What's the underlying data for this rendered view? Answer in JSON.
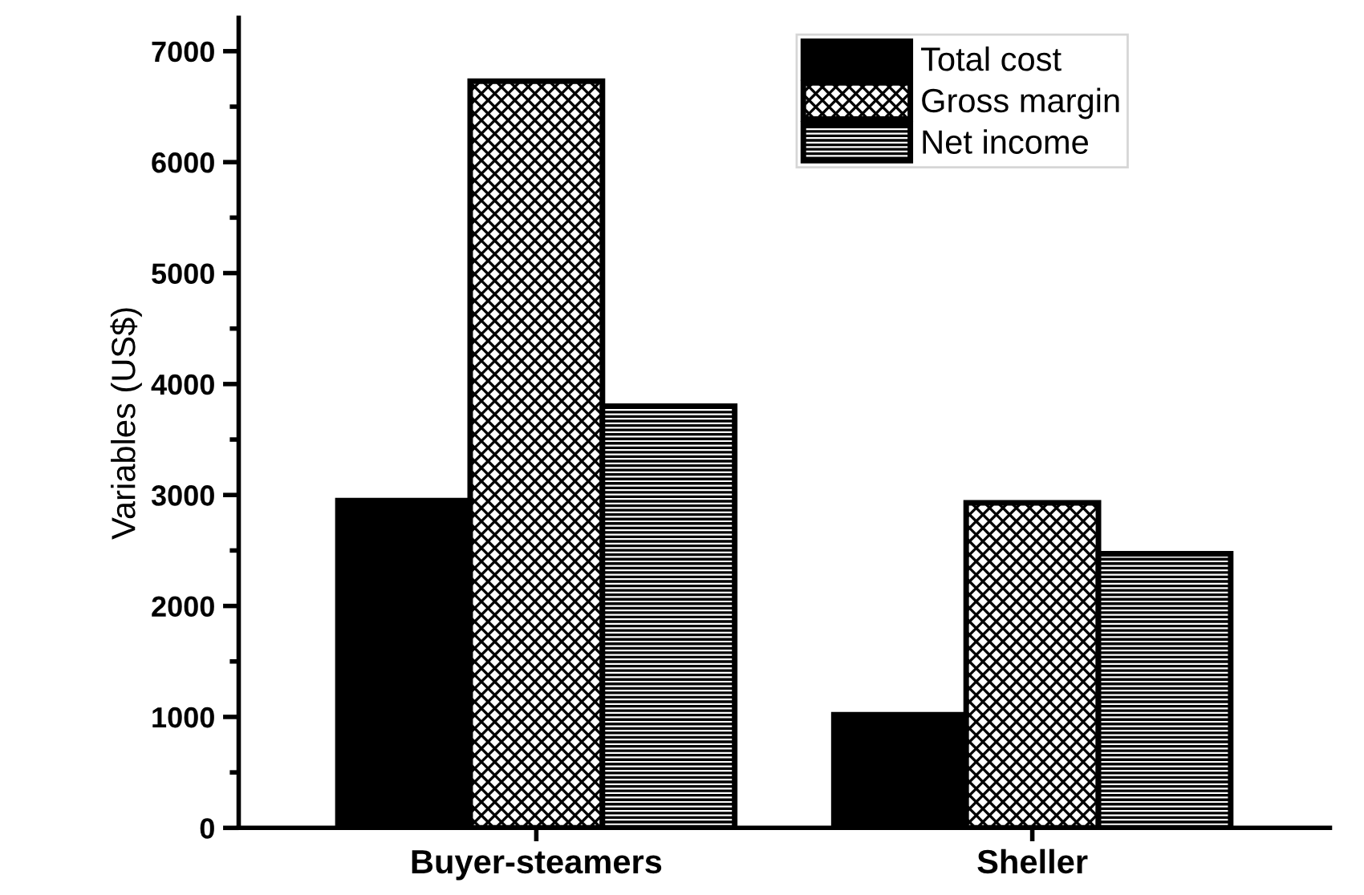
{
  "chart_data": {
    "type": "bar",
    "ylabel": "Variables (US$)",
    "categories": [
      "Buyer-steamers",
      "Sheller"
    ],
    "series": [
      {
        "name": "Total cost",
        "color": "#000000",
        "values": [
          2950,
          1020
        ]
      },
      {
        "name": "Gross margin",
        "color": "#000000",
        "values": [
          6730,
          2930
        ]
      },
      {
        "name": "Net income",
        "color": "#000000",
        "values": [
          3800,
          2470
        ]
      }
    ],
    "ylim": [
      0,
      7300
    ],
    "yticks": [
      0,
      {
        "value": 500,
        "label": null
      },
      1000,
      {
        "value": 1500,
        "label": null
      },
      2000,
      {
        "value": 2500,
        "label": null
      },
      3000,
      {
        "value": 3500,
        "label": null
      },
      4000,
      {
        "value": 4500,
        "label": null
      },
      5000,
      {
        "value": 5500,
        "label": null
      },
      6000,
      {
        "value": 6500,
        "label": null
      },
      7000
    ],
    "grid": false,
    "legend": "top right"
  }
}
